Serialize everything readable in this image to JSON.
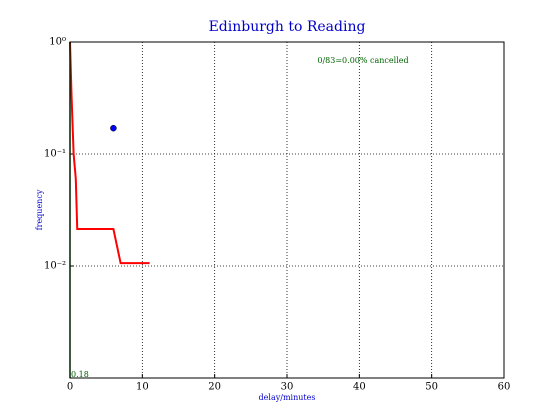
{
  "chart_data": {
    "type": "line",
    "title": "Edinburgh to Reading",
    "xlabel": "delay/minutes",
    "ylabel": "frequency",
    "annotation": "0/83=0.00% cancelled",
    "xlim": [
      0,
      60
    ],
    "xticks": [
      0,
      10,
      20,
      30,
      40,
      50,
      60
    ],
    "ylim": [
      0.001,
      1
    ],
    "log_y": true,
    "yticks": [
      {
        "value": 1,
        "label": "10⁰"
      },
      {
        "value": 0.1,
        "label": "10⁻¹"
      },
      {
        "value": 0.01,
        "label": "10⁻²"
      }
    ],
    "grid": true,
    "series": [
      {
        "name": "delay distribution",
        "color": "#ff0000",
        "x": [
          0,
          0.2,
          0.5,
          0.8,
          1,
          6,
          7,
          11
        ],
        "values": [
          1,
          0.35,
          0.1,
          0.06,
          0.0214,
          0.0214,
          0.0106,
          0.0106
        ]
      }
    ],
    "point": {
      "x": 6,
      "value": 0.17,
      "color": "#0000ff"
    },
    "vline": {
      "x": 0,
      "label": "0.18",
      "color": "#006400"
    }
  }
}
